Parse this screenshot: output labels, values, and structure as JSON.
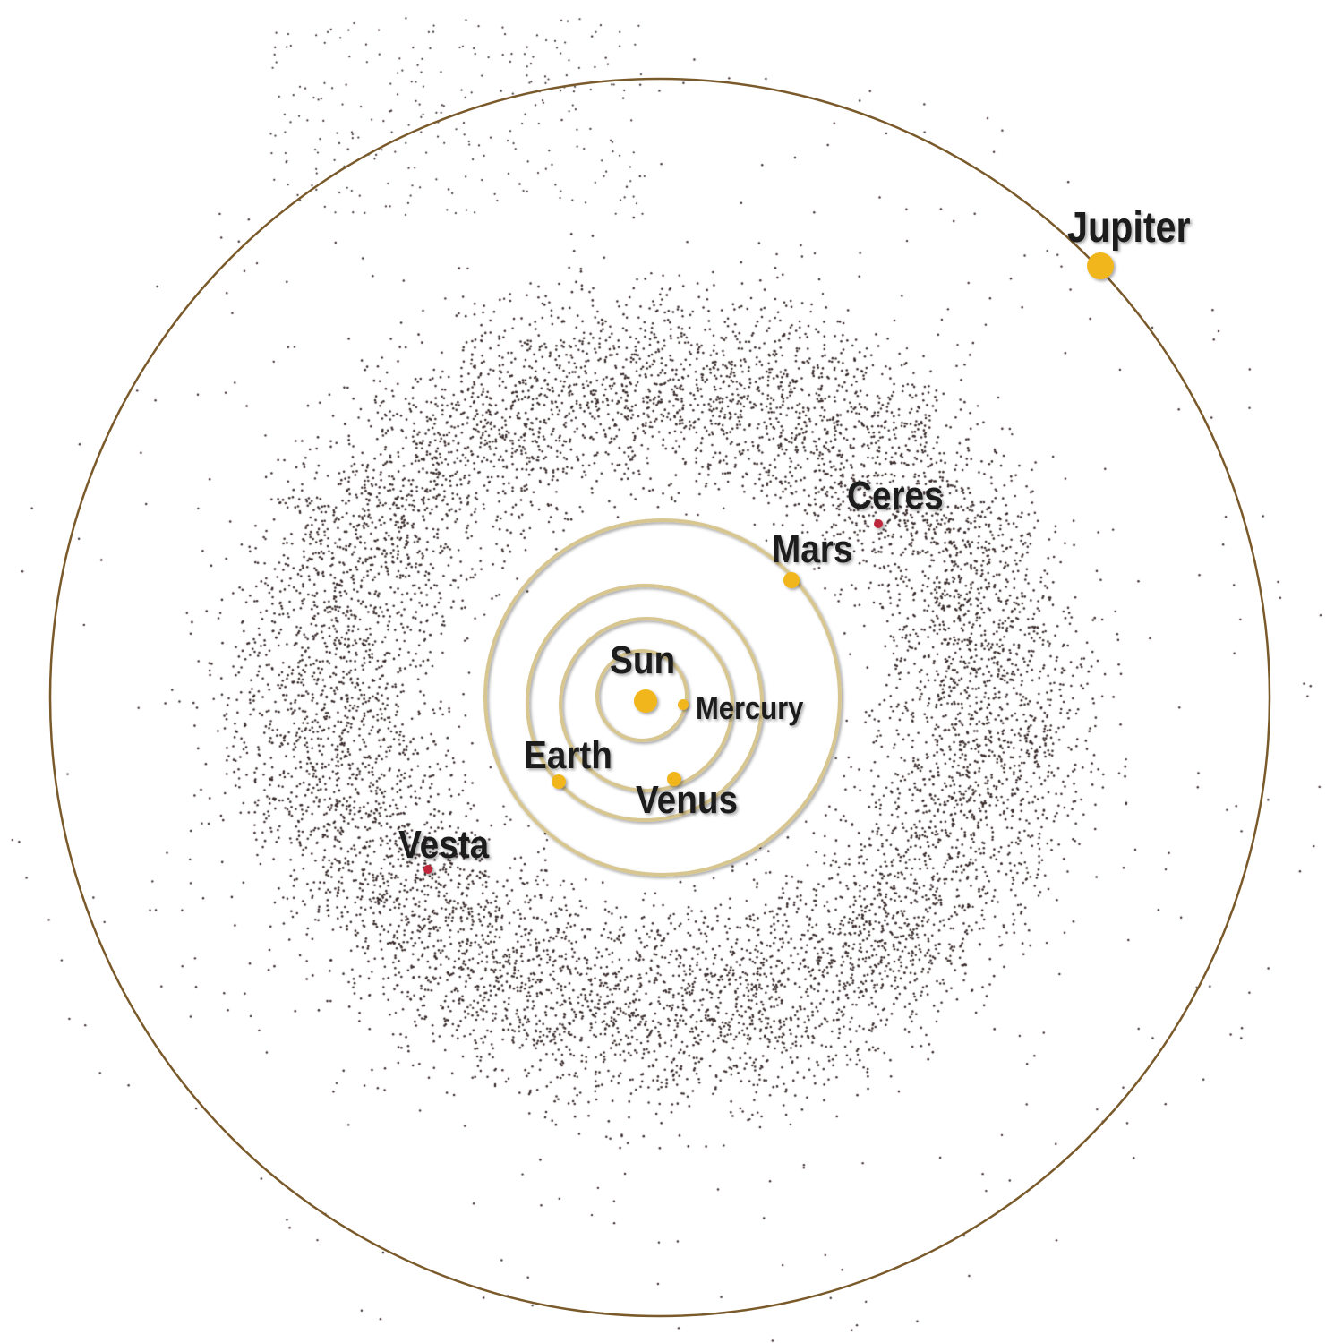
{
  "colors": {
    "planet": "#f0b61c",
    "dwarf_planet": "#c0283a",
    "inner_orbit": "#d8c690",
    "jupiter_orbit": "#7a5a2a",
    "asteroid": "#3b2c2c",
    "label": "#1e1c1c"
  },
  "bodies": {
    "sun": {
      "label": "Sun"
    },
    "mercury": {
      "label": "Mercury"
    },
    "venus": {
      "label": "Venus"
    },
    "earth": {
      "label": "Earth"
    },
    "mars": {
      "label": "Mars"
    },
    "jupiter": {
      "label": "Jupiter"
    },
    "ceres": {
      "label": "Ceres"
    },
    "vesta": {
      "label": "Vesta"
    }
  }
}
